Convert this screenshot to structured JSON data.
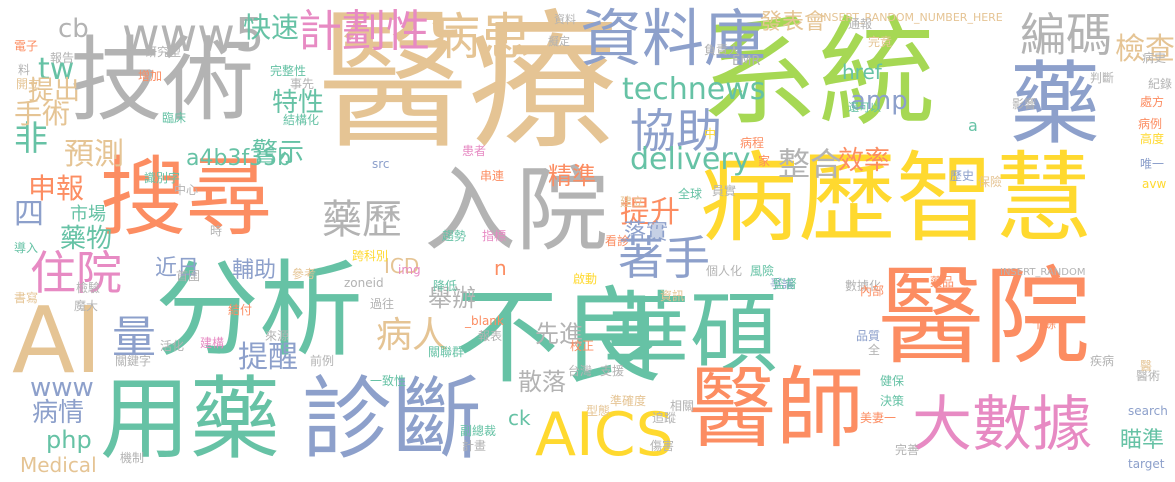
{
  "palette": {
    "tan": "#E5C494",
    "gray": "#B3B3B3",
    "green": "#A6D854",
    "blue": "#8DA0CB",
    "orange": "#FC8D62",
    "teal": "#66C2A5",
    "yellow": "#FFD92F",
    "pink": "#E78AC3"
  },
  "words": [
    {
      "text": "醫療",
      "color": "tan"
    },
    {
      "text": "系統",
      "color": "green"
    },
    {
      "text": "技術",
      "color": "gray"
    },
    {
      "text": "病歷智慧",
      "color": "yellow"
    },
    {
      "text": "搜尋",
      "color": "orange"
    },
    {
      "text": "醫院",
      "color": "orange"
    },
    {
      "text": "分析",
      "color": "teal"
    },
    {
      "text": "不良",
      "color": "teal"
    },
    {
      "text": "華碩",
      "color": "teal"
    },
    {
      "text": "入院",
      "color": "gray"
    },
    {
      "text": "用藥",
      "color": "teal"
    },
    {
      "text": "診斷",
      "color": "blue"
    },
    {
      "text": "醫師",
      "color": "orange"
    },
    {
      "text": "藥",
      "color": "blue"
    },
    {
      "text": "AI",
      "color": "tan"
    },
    {
      "text": "AICS",
      "color": "yellow"
    },
    {
      "text": "資料庫",
      "color": "blue"
    },
    {
      "text": "大數據",
      "color": "pink"
    },
    {
      "text": "www5",
      "color": "gray"
    },
    {
      "text": "病患",
      "color": "tan"
    },
    {
      "text": "計劃性",
      "color": "pink"
    },
    {
      "text": "協助",
      "color": "blue"
    },
    {
      "text": "編碼",
      "color": "gray"
    },
    {
      "text": "藥歷",
      "color": "gray"
    },
    {
      "text": "住院",
      "color": "pink"
    },
    {
      "text": "著手",
      "color": "blue"
    },
    {
      "text": "病人",
      "color": "tan"
    },
    {
      "text": "量",
      "color": "blue"
    },
    {
      "text": "technews",
      "color": "teal"
    },
    {
      "text": "delivery",
      "color": "teal"
    },
    {
      "text": "www",
      "color": "blue"
    },
    {
      "text": "檢查",
      "color": "tan"
    },
    {
      "text": "快速",
      "color": "teal"
    },
    {
      "text": "特性",
      "color": "teal"
    },
    {
      "text": "非",
      "color": "teal"
    },
    {
      "text": "四",
      "color": "blue"
    },
    {
      "text": "tw",
      "color": "teal"
    },
    {
      "text": "cb",
      "color": "gray"
    },
    {
      "text": "整合",
      "color": "gray"
    },
    {
      "text": "效率",
      "color": "orange"
    },
    {
      "text": "提升",
      "color": "orange"
    },
    {
      "text": "精準",
      "color": "orange"
    },
    {
      "text": "預測",
      "color": "tan"
    },
    {
      "text": "申報",
      "color": "orange"
    },
    {
      "text": "手術",
      "color": "tan"
    },
    {
      "text": "提出",
      "color": "tan"
    },
    {
      "text": "藥物",
      "color": "teal"
    },
    {
      "text": "市場",
      "color": "teal"
    },
    {
      "text": "警示",
      "color": "teal"
    },
    {
      "text": "a4b3f35b",
      "color": "teal"
    },
    {
      "text": "amp",
      "color": "blue"
    },
    {
      "text": "href",
      "color": "teal"
    },
    {
      "text": "落實",
      "color": "blue"
    },
    {
      "text": "輔助",
      "color": "blue"
    },
    {
      "text": "近日",
      "color": "blue"
    },
    {
      "text": "提醒",
      "color": "blue"
    },
    {
      "text": "舉辦",
      "color": "gray"
    },
    {
      "text": "先進",
      "color": "gray"
    },
    {
      "text": "散落",
      "color": "gray"
    },
    {
      "text": "ICD",
      "color": "tan"
    },
    {
      "text": "病情",
      "color": "blue"
    },
    {
      "text": "php",
      "color": "teal"
    },
    {
      "text": "Medical",
      "color": "tan"
    },
    {
      "text": "ck",
      "color": "teal"
    },
    {
      "text": "瞄準",
      "color": "teal"
    },
    {
      "text": "發表會",
      "color": "tan"
    },
    {
      "text": "INSERT_RANDOM_NUMBER_HERE",
      "color": "tan"
    },
    {
      "text": "INSERT_RANDOM",
      "color": "gray"
    },
    {
      "text": "EMR",
      "color": "gray"
    },
    {
      "text": "研究型",
      "color": "gray"
    },
    {
      "text": "完整性",
      "color": "teal"
    },
    {
      "text": "資料",
      "color": "gray"
    },
    {
      "text": "擬定",
      "color": "gray"
    },
    {
      "text": "負責人",
      "color": "gray"
    },
    {
      "text": "電子",
      "color": "orange"
    },
    {
      "text": "報告",
      "color": "gray"
    },
    {
      "text": "增加",
      "color": "orange"
    },
    {
      "text": "開立",
      "color": "tan"
    },
    {
      "text": "臨床",
      "color": "teal"
    },
    {
      "text": "結構化",
      "color": "teal"
    },
    {
      "text": "事先",
      "color": "gray"
    },
    {
      "text": "還可以",
      "color": "teal"
    },
    {
      "text": "判斷",
      "color": "gray"
    },
    {
      "text": "紀錄",
      "color": "gray"
    },
    {
      "text": "病史",
      "color": "gray"
    },
    {
      "text": "處方",
      "color": "orange"
    },
    {
      "text": "病例",
      "color": "orange"
    },
    {
      "text": "高度",
      "color": "yellow"
    },
    {
      "text": "唯一",
      "color": "blue"
    },
    {
      "text": "avw",
      "color": "yellow"
    },
    {
      "text": "保險",
      "color": "tan"
    },
    {
      "text": "歷史",
      "color": "blue"
    },
    {
      "text": "病程",
      "color": "orange"
    },
    {
      "text": "員實",
      "color": "gray"
    },
    {
      "text": "全球",
      "color": "teal"
    },
    {
      "text": "建立",
      "color": "tan"
    },
    {
      "text": "串連",
      "color": "orange"
    },
    {
      "text": "患者",
      "color": "pink"
    },
    {
      "text": "src",
      "color": "blue"
    },
    {
      "text": "識別字",
      "color": "teal"
    },
    {
      "text": "跨科別",
      "color": "yellow"
    },
    {
      "text": "中心",
      "color": "gray"
    },
    {
      "text": "導入",
      "color": "teal"
    },
    {
      "text": "書寫",
      "color": "tan"
    },
    {
      "text": "檢驗",
      "color": "gray"
    },
    {
      "text": "首圍",
      "color": "gray"
    },
    {
      "text": "參考",
      "color": "tan"
    },
    {
      "text": "zoneid",
      "color": "gray"
    },
    {
      "text": "指標",
      "color": "pink"
    },
    {
      "text": "趨勢",
      "color": "teal"
    },
    {
      "text": "啟動",
      "color": "yellow"
    },
    {
      "text": "看診",
      "color": "orange"
    },
    {
      "text": "個人化",
      "color": "gray"
    },
    {
      "text": "風險",
      "color": "teal"
    },
    {
      "text": "爭議",
      "color": "blue"
    },
    {
      "text": "藥品",
      "color": "orange"
    },
    {
      "text": "數據化",
      "color": "gray"
    },
    {
      "text": "監督",
      "color": "teal"
    },
    {
      "text": "降低",
      "color": "teal"
    },
    {
      "text": "魔大",
      "color": "gray"
    },
    {
      "text": "過往",
      "color": "gray"
    },
    {
      "text": "資訊",
      "color": "tan"
    },
    {
      "text": "_blank",
      "color": "orange"
    },
    {
      "text": "報表",
      "color": "gray"
    },
    {
      "text": "建構",
      "color": "pink"
    },
    {
      "text": "活化",
      "color": "gray"
    },
    {
      "text": "來源",
      "color": "gray"
    },
    {
      "text": "前例",
      "color": "gray"
    },
    {
      "text": "關聯群",
      "color": "teal"
    },
    {
      "text": "校正",
      "color": "orange"
    },
    {
      "text": "內部",
      "color": "orange"
    },
    {
      "text": "品質",
      "color": "blue"
    },
    {
      "text": "十餘",
      "color": "orange"
    },
    {
      "text": "疾病",
      "color": "gray"
    },
    {
      "text": "醫術",
      "color": "gray"
    },
    {
      "text": "健保",
      "color": "teal"
    },
    {
      "text": "決策",
      "color": "teal"
    },
    {
      "text": "美妻一",
      "color": "orange"
    },
    {
      "text": "關鍵字",
      "color": "gray"
    },
    {
      "text": "一致性",
      "color": "teal"
    },
    {
      "text": "台灣",
      "color": "gray"
    },
    {
      "text": "支援",
      "color": "gray"
    },
    {
      "text": "相關",
      "color": "gray"
    },
    {
      "text": "追蹤",
      "color": "gray"
    },
    {
      "text": "準確度",
      "color": "tan"
    },
    {
      "text": "型態",
      "color": "tan"
    },
    {
      "text": "副總裁",
      "color": "teal"
    },
    {
      "text": "計畫",
      "color": "gray"
    },
    {
      "text": "傷害",
      "color": "gray"
    },
    {
      "text": "完善",
      "color": "gray"
    },
    {
      "text": "機制",
      "color": "gray"
    },
    {
      "text": "search",
      "color": "blue"
    },
    {
      "text": "target",
      "color": "blue"
    },
    {
      "text": "醫",
      "color": "tan"
    },
    {
      "text": "料",
      "color": "gray"
    },
    {
      "text": "a",
      "color": "teal"
    },
    {
      "text": "n",
      "color": "orange"
    },
    {
      "text": "全",
      "color": "gray"
    },
    {
      "text": "中",
      "color": "yellow"
    },
    {
      "text": "家",
      "color": "orange"
    },
    {
      "text": "img",
      "color": "pink"
    },
    {
      "text": "通報",
      "color": "gray"
    },
    {
      "text": "影響",
      "color": "gray"
    },
    {
      "text": "完竟",
      "color": "tan"
    },
    {
      "text": "時",
      "color": "gray"
    },
    {
      "text": "結付",
      "color": "orange"
    }
  ]
}
